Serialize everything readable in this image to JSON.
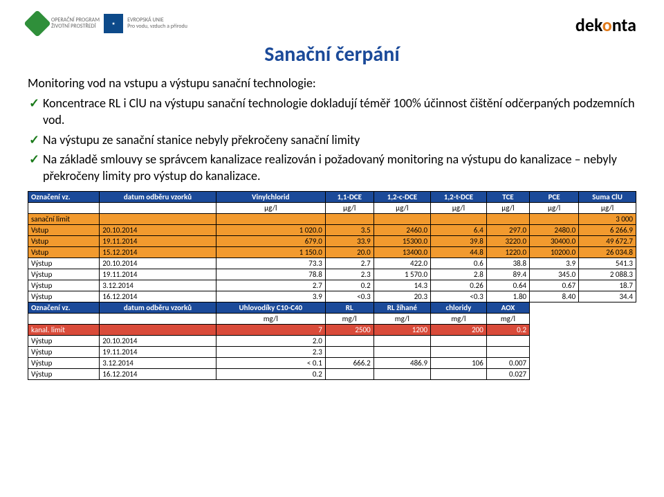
{
  "header": {
    "left_program": "OPERAČNÍ PROGRAM",
    "left_program2": "ŽIVOTNÍ PROSTŘEDÍ",
    "left_eu": "EVROPSKÁ UNIE",
    "left_sub": "Pro vodu, vzduch a přírodu",
    "right_brand_a": "dek",
    "right_brand_b": "o",
    "right_brand_c": "nta"
  },
  "title": "Sanační čerpání",
  "subtitle": "Monitoring vod na vstupu a výstupu sanační technologie:",
  "bullets": [
    "Koncentrace RL i ClU na výstupu sanační technologie dokladují téměř 100% účinnost čištění odčerpaných podzemních vod.",
    "Na výstupu ze sanační stanice nebyly překročeny sanační limity",
    "Na základě smlouvy se správcem kanalizace realizován i požadovaný monitoring na výstupu do kanalizace – nebyly překročeny limity pro výstup do kanalizace."
  ],
  "table1": {
    "headers": [
      "Označení vz.",
      "datum odběru vzorků",
      "Vinylchlorid",
      "1,1-DCE",
      "1,2-c-DCE",
      "1,2-t-DCE",
      "TCE",
      "PCE",
      "Suma ClU"
    ],
    "units": [
      "",
      "",
      "µg/l",
      "µg/l",
      "µg/l",
      "µg/l",
      "µg/l",
      "µg/l",
      "µg/l"
    ],
    "limit_label": "sanační limit",
    "limit_value": "3 000",
    "rows": [
      {
        "cls": "orange-row",
        "c": [
          "Vstup",
          "20.10.2014",
          "1 020.0",
          "3.5",
          "2460.0",
          "6.4",
          "297.0",
          "2480.0",
          "6 266.9"
        ]
      },
      {
        "cls": "orange-row",
        "c": [
          "Vstup",
          "19.11.2014",
          "679.0",
          "33.9",
          "15300.0",
          "39.8",
          "3220.0",
          "30400.0",
          "49 672.7"
        ]
      },
      {
        "cls": "orange-row",
        "c": [
          "Vstup",
          "15.12.2014",
          "1 150.0",
          "20.0",
          "13400.0",
          "44.8",
          "1220.0",
          "10200.0",
          "26 034.8"
        ]
      },
      {
        "cls": "",
        "c": [
          "Výstup",
          "20.10.2014",
          "73.3",
          "2.7",
          "422.0",
          "0.6",
          "38.8",
          "3.9",
          "541.3"
        ]
      },
      {
        "cls": "",
        "c": [
          "Výstup",
          "19.11.2014",
          "78.8",
          "2.3",
          "1 570.0",
          "2.8",
          "89.4",
          "345.0",
          "2 088.3"
        ]
      },
      {
        "cls": "",
        "c": [
          "Výstup",
          "3.12.2014",
          "2.7",
          "0.2",
          "14.3",
          "0.26",
          "0.64",
          "0.67",
          "18.7"
        ]
      },
      {
        "cls": "",
        "c": [
          "Výstup",
          "16.12.2014",
          "3.9",
          "<0.3",
          "20.3",
          "<0.3",
          "1.80",
          "8.40",
          "34.4"
        ]
      }
    ]
  },
  "table2": {
    "headers": [
      "Označení vz.",
      "datum odběru vzorků",
      "Uhlovodíky C10-C40",
      "RL",
      "RL žíhané",
      "chloridy",
      "AOX"
    ],
    "units": [
      "",
      "",
      "mg/l",
      "mg/l",
      "mg/l",
      "mg/l",
      "mg/l"
    ],
    "limit_label": "kanal. limit",
    "limit_values": [
      "",
      "",
      "7",
      "2500",
      "1200",
      "200",
      "0.2"
    ],
    "rows": [
      {
        "c": [
          "Výstup",
          "20.10.2014",
          "2.0",
          "",
          "",
          "",
          ""
        ]
      },
      {
        "c": [
          "Výstup",
          "19.11.2014",
          "2.3",
          "",
          "",
          "",
          ""
        ]
      },
      {
        "c": [
          "Výstup",
          "3.12.2014",
          "< 0.1",
          "666.2",
          "486.9",
          "106",
          "0.007"
        ]
      },
      {
        "c": [
          "Výstup",
          "16.12.2014",
          "0.2",
          "",
          "",
          "",
          "0.027"
        ]
      }
    ]
  }
}
